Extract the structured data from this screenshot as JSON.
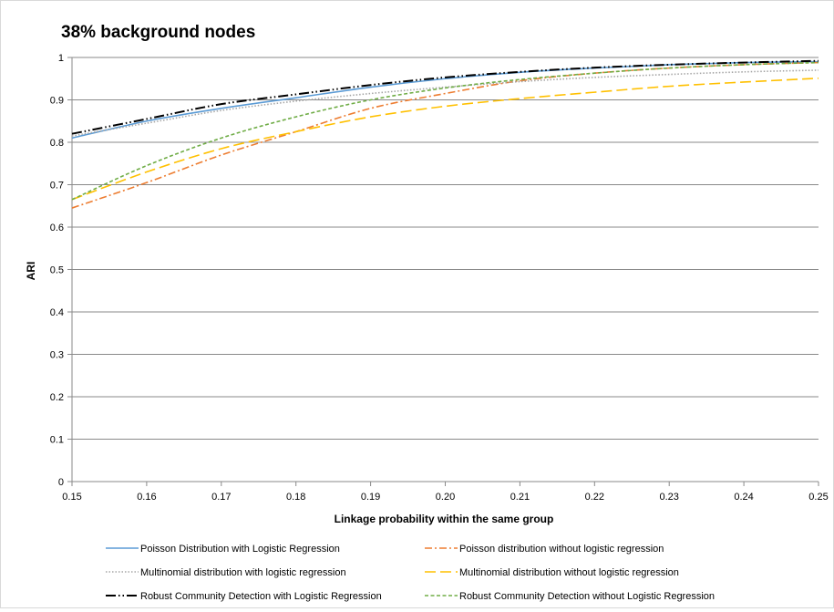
{
  "chart_data": {
    "type": "line",
    "title": "38% background nodes",
    "xlabel": "Linkage probability within the same group",
    "ylabel": "ARI",
    "xlim": [
      0.15,
      0.25
    ],
    "ylim": [
      0,
      1
    ],
    "grid": "horizontal",
    "legend_position": "bottom",
    "x": [
      0.15,
      0.16,
      0.17,
      0.18,
      0.19,
      0.2,
      0.21,
      0.22,
      0.23,
      0.24,
      0.25
    ],
    "x_tick_labels": [
      "0.15",
      "0.16",
      "0.17",
      "0.18",
      "0.19",
      "0.20",
      "0.21",
      "0.22",
      "0.23",
      "0.24",
      "0.25"
    ],
    "y_tick_labels": [
      "0",
      "0.1",
      "0.2",
      "0.3",
      "0.4",
      "0.5",
      "0.6",
      "0.7",
      "0.8",
      "0.9",
      "1"
    ],
    "y_ticks": [
      0,
      0.1,
      0.2,
      0.3,
      0.4,
      0.5,
      0.6,
      0.7,
      0.8,
      0.9,
      1
    ],
    "series": [
      {
        "name": "Poisson Distribution with Logistic Regression",
        "color": "#5b9bd5",
        "dash": "solid",
        "values": [
          0.81,
          0.85,
          0.88,
          0.905,
          0.93,
          0.95,
          0.965,
          0.975,
          0.983,
          0.988,
          0.99
        ]
      },
      {
        "name": "Poisson distribution without logistic regression",
        "color": "#ed7d31",
        "dash": "dashdot",
        "values": [
          0.645,
          0.705,
          0.77,
          0.825,
          0.88,
          0.915,
          0.945,
          0.963,
          0.975,
          0.983,
          0.988
        ]
      },
      {
        "name": "Multinomial distribution with logistic regression",
        "color": "#a5a5a5",
        "dash": "dotted",
        "values": [
          0.815,
          0.845,
          0.875,
          0.897,
          0.915,
          0.93,
          0.943,
          0.953,
          0.96,
          0.966,
          0.97
        ]
      },
      {
        "name": "Multinomial distribution without logistic regression",
        "color": "#ffc000",
        "dash": "longdash",
        "values": [
          0.665,
          0.73,
          0.785,
          0.825,
          0.86,
          0.885,
          0.903,
          0.918,
          0.932,
          0.942,
          0.951
        ]
      },
      {
        "name": "Robust Community Detection with Logistic Regression",
        "color": "#000000",
        "dash": "longdashdotdot",
        "values": [
          0.82,
          0.855,
          0.89,
          0.913,
          0.935,
          0.953,
          0.966,
          0.976,
          0.983,
          0.988,
          0.992
        ]
      },
      {
        "name": "Robust Community Detection without Logistic Regression",
        "color": "#70ad47",
        "dash": "dashed",
        "values": [
          0.665,
          0.745,
          0.81,
          0.86,
          0.9,
          0.928,
          0.948,
          0.963,
          0.975,
          0.983,
          0.988
        ]
      }
    ]
  }
}
